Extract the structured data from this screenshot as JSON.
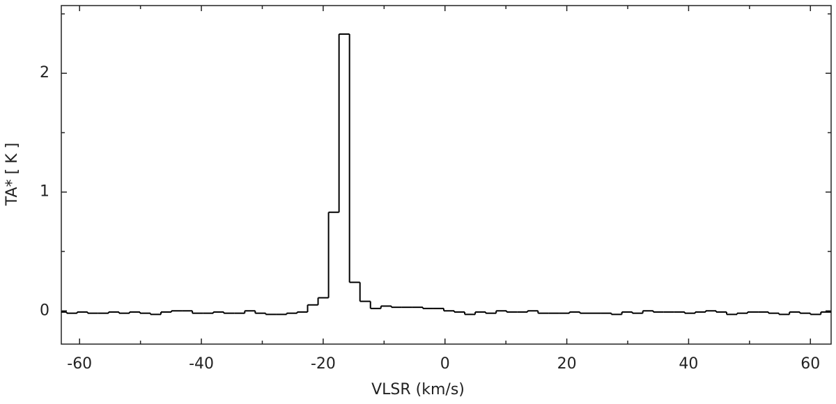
{
  "chart_data": {
    "type": "step",
    "x_label": "VLSR (km/s)",
    "y_label": "TA* [ K ]",
    "x": [
      -62.98,
      -61.26,
      -59.54,
      -57.82,
      -56.1,
      -54.38,
      -52.66,
      -50.94,
      -49.22,
      -47.5,
      -45.78,
      -44.06,
      -42.34,
      -40.62,
      -38.9,
      -37.18,
      -35.46,
      -33.74,
      -32.02,
      -30.3,
      -28.58,
      -26.86,
      -25.14,
      -23.42,
      -21.7,
      -19.98,
      -18.26,
      -16.54,
      -14.82,
      -13.1,
      -11.38,
      -9.66,
      -7.94,
      -6.22,
      -4.5,
      -2.78,
      -1.06,
      0.66,
      2.38,
      4.1,
      5.82,
      7.54,
      9.26,
      10.98,
      12.7,
      14.42,
      16.14,
      17.86,
      19.58,
      21.3,
      23.02,
      24.74,
      26.46,
      28.18,
      29.9,
      31.62,
      33.34,
      35.06,
      36.78,
      38.5,
      40.22,
      41.94,
      43.66,
      45.38,
      47.1,
      48.82,
      50.54,
      52.26,
      53.98,
      55.7,
      57.42,
      59.14,
      60.86,
      62.58
    ],
    "values": [
      -0.01,
      -0.02,
      -0.01,
      -0.02,
      -0.02,
      -0.01,
      -0.02,
      -0.01,
      -0.02,
      -0.03,
      -0.01,
      0.0,
      0.0,
      -0.02,
      -0.02,
      -0.01,
      -0.02,
      -0.02,
      0.0,
      -0.02,
      -0.03,
      -0.03,
      -0.02,
      -0.01,
      0.05,
      0.11,
      0.83,
      2.33,
      0.24,
      0.08,
      0.02,
      0.04,
      0.03,
      0.03,
      0.03,
      0.02,
      0.02,
      0.0,
      -0.01,
      -0.03,
      -0.01,
      -0.02,
      0.0,
      -0.01,
      -0.01,
      0.0,
      -0.02,
      -0.02,
      -0.02,
      -0.01,
      -0.02,
      -0.02,
      -0.02,
      -0.03,
      -0.01,
      -0.02,
      0.0,
      -0.01,
      -0.01,
      -0.01,
      -0.02,
      -0.01,
      0.0,
      -0.01,
      -0.03,
      -0.02,
      -0.01,
      -0.01,
      -0.02,
      -0.03,
      -0.01,
      -0.02,
      -0.03,
      -0.01
    ],
    "color": "#000000",
    "xlim": [
      -63,
      63.4
    ],
    "ylim": [
      -0.28,
      2.57
    ],
    "xticks": [
      -60,
      -40,
      -20,
      0,
      20,
      40,
      60
    ],
    "yticks": [
      0,
      1,
      2
    ],
    "x_minor_ticks": [
      -50,
      -30,
      -10,
      10,
      30,
      50
    ],
    "y_minor_ticks": [
      0.5,
      1.5,
      2.5
    ]
  }
}
